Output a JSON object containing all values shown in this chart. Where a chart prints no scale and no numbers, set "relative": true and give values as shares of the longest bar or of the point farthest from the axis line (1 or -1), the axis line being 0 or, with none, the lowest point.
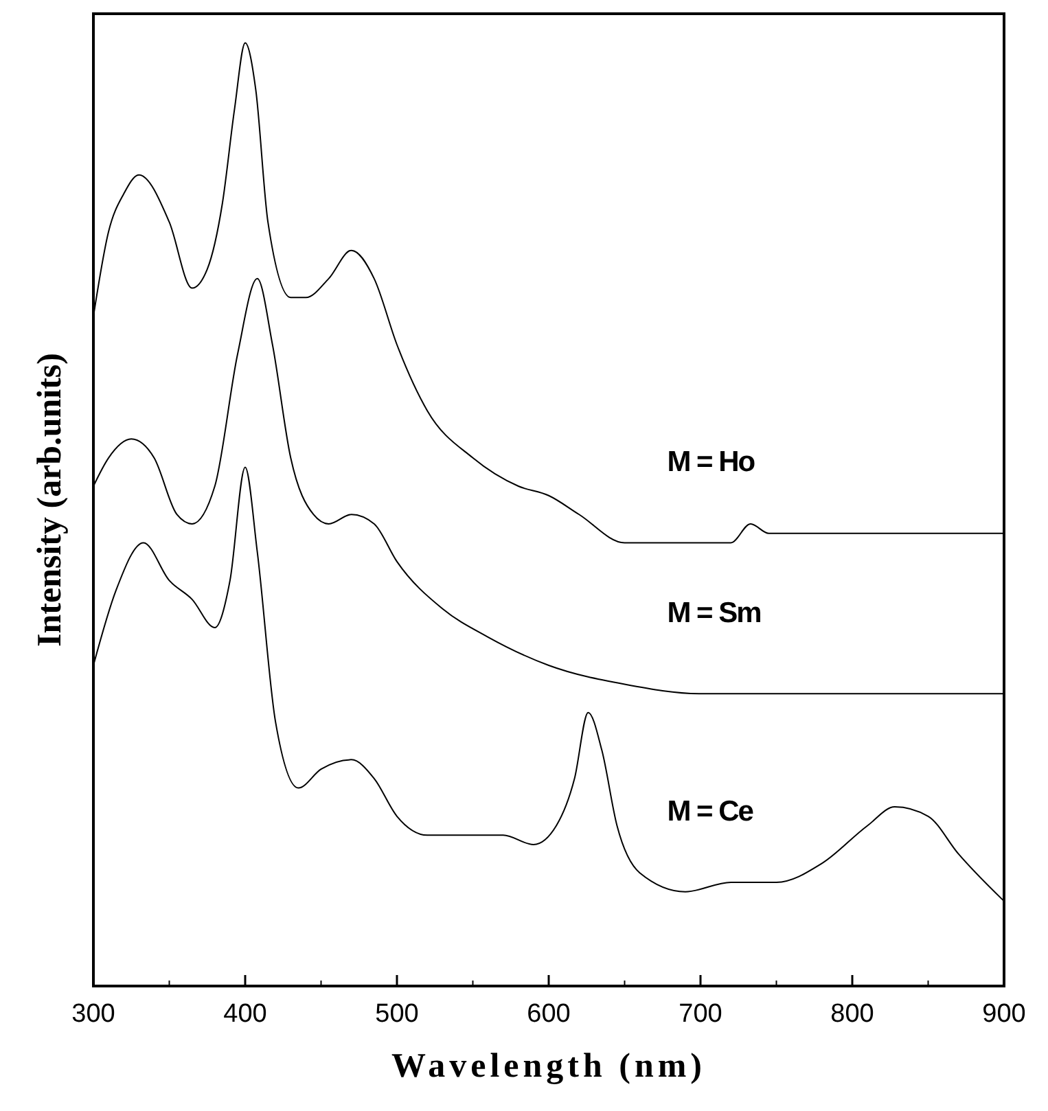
{
  "chart_data": {
    "type": "line",
    "relative": true,
    "xlabel": "Wavelength (nm)",
    "ylabel": "Intensity (arb.units)",
    "xlim": [
      300,
      900
    ],
    "xticks": [
      300,
      400,
      500,
      600,
      700,
      800,
      900
    ],
    "grid": false,
    "marker": "none",
    "line_style": "solid",
    "series": [
      {
        "name": "M = Ho",
        "color": "#000000",
        "x": [
          300,
          310,
          320,
          330,
          350,
          365,
          375,
          385,
          393,
          400,
          407,
          415,
          430,
          440,
          455,
          470,
          485,
          500,
          520,
          550,
          580,
          600,
          620,
          650,
          700,
          720,
          733,
          745,
          800,
          850,
          900
        ],
        "values": [
          0.71,
          0.8,
          0.84,
          0.86,
          0.81,
          0.74,
          0.76,
          0.83,
          0.93,
          1,
          0.95,
          0.81,
          0.73,
          0.73,
          0.75,
          0.78,
          0.75,
          0.68,
          0.61,
          0.56,
          0.53,
          0.52,
          0.5,
          0.47,
          0.47,
          0.47,
          0.49,
          0.48,
          0.48,
          0.48,
          0.48
        ]
      },
      {
        "name": "M = Sm",
        "color": "#000000",
        "x": [
          300,
          310,
          325,
          340,
          355,
          365,
          380,
          395,
          408,
          418,
          430,
          445,
          455,
          470,
          485,
          500,
          530,
          560,
          600,
          650,
          700,
          800,
          900
        ],
        "values": [
          0.53,
          0.56,
          0.58,
          0.56,
          0.5,
          0.49,
          0.53,
          0.67,
          0.75,
          0.68,
          0.56,
          0.5,
          0.49,
          0.5,
          0.49,
          0.45,
          0.4,
          0.37,
          0.34,
          0.32,
          0.31,
          0.31,
          0.31
        ]
      },
      {
        "name": "M = Ce",
        "color": "#000000",
        "x": [
          300,
          315,
          333,
          350,
          365,
          380,
          390,
          400,
          408,
          420,
          435,
          450,
          470,
          485,
          500,
          520,
          550,
          570,
          590,
          605,
          617,
          626,
          635,
          645,
          660,
          690,
          720,
          750,
          780,
          810,
          828,
          850,
          870,
          900
        ],
        "values": [
          0.34,
          0.42,
          0.47,
          0.43,
          0.41,
          0.38,
          0.43,
          0.55,
          0.46,
          0.28,
          0.21,
          0.23,
          0.24,
          0.22,
          0.18,
          0.16,
          0.16,
          0.16,
          0.15,
          0.17,
          0.22,
          0.29,
          0.25,
          0.17,
          0.12,
          0.1,
          0.11,
          0.11,
          0.13,
          0.17,
          0.19,
          0.18,
          0.14,
          0.09
        ]
      }
    ]
  }
}
